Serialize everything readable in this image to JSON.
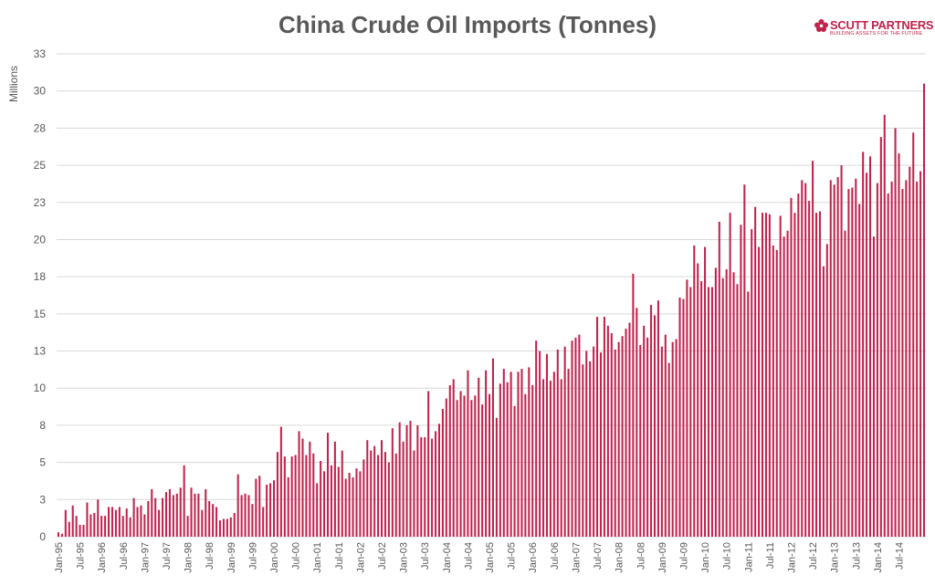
{
  "chart_data": {
    "type": "bar",
    "title": "China Crude Oil Imports (Tonnes)",
    "xlabel": "",
    "ylabel": "Millions",
    "ylim": [
      0,
      32.5
    ],
    "yticks": [
      0,
      2.5,
      5,
      7.5,
      10,
      12.5,
      15,
      17.5,
      20,
      22.5,
      25,
      27.5,
      30,
      32.5
    ],
    "ytick_labels": [
      "0",
      "3",
      "5",
      "8",
      "10",
      "13",
      "15",
      "18",
      "20",
      "23",
      "25",
      "28",
      "30",
      "33"
    ],
    "grid": true,
    "start": "1995-01",
    "tick_labels": [
      "Jan-95",
      "Jul-95",
      "Jan-96",
      "Jul-96",
      "Jan-97",
      "Jul-97",
      "Jan-98",
      "Jul-98",
      "Jan-99",
      "Jul-99",
      "Jan-00",
      "Jul-00",
      "Jan-01",
      "Jul-01",
      "Jan-02",
      "Jul-02",
      "Jan-03",
      "Jul-03",
      "Jan-04",
      "Jul-04",
      "Jan-05",
      "Jul-05",
      "Jan-06",
      "Jul-06",
      "Jan-07",
      "Jul-07",
      "Jan-08",
      "Jul-08",
      "Jan-09",
      "Jul-09",
      "Jan-10",
      "Jul-10",
      "Jan-11",
      "Jul-11",
      "Jan-12",
      "Jul-12",
      "Jan-13",
      "Jul-13",
      "Jan-14",
      "Jul-14"
    ],
    "series": [
      {
        "name": "Crude Oil Imports",
        "values": [
          0.3,
          0.2,
          1.8,
          1.0,
          2.1,
          1.4,
          0.8,
          0.8,
          2.3,
          1.5,
          1.6,
          2.5,
          1.4,
          1.4,
          2.0,
          2.0,
          1.8,
          2.0,
          1.4,
          1.9,
          1.3,
          2.6,
          2.0,
          2.1,
          1.5,
          2.4,
          3.2,
          2.6,
          1.8,
          2.6,
          3.0,
          3.2,
          2.8,
          2.9,
          3.3,
          4.8,
          1.4,
          3.3,
          2.9,
          2.9,
          1.8,
          3.2,
          2.4,
          2.2,
          2.0,
          1.1,
          1.2,
          1.2,
          1.3,
          1.6,
          4.2,
          2.8,
          2.9,
          2.8,
          2.2,
          3.9,
          4.1,
          2.0,
          3.5,
          3.6,
          3.8,
          5.7,
          7.4,
          5.4,
          4.0,
          5.4,
          5.5,
          7.1,
          6.6,
          5.5,
          6.4,
          5.6,
          3.6,
          5.1,
          4.4,
          7.0,
          4.8,
          6.4,
          4.7,
          5.8,
          3.9,
          4.3,
          4.0,
          4.6,
          4.4,
          5.2,
          6.5,
          5.8,
          6.1,
          5.5,
          6.5,
          5.7,
          5.0,
          7.3,
          5.6,
          7.7,
          6.4,
          7.5,
          7.8,
          5.8,
          7.5,
          6.7,
          6.7,
          9.8,
          6.6,
          7.1,
          7.6,
          8.6,
          9.3,
          10.2,
          10.6,
          9.2,
          9.8,
          9.5,
          11.2,
          9.2,
          9.5,
          10.7,
          8.9,
          11.2,
          9.6,
          12.0,
          8.0,
          10.3,
          11.3,
          10.4,
          11.1,
          8.8,
          11.1,
          11.3,
          9.6,
          11.4,
          10.2,
          13.2,
          12.5,
          10.6,
          12.3,
          10.5,
          11.1,
          12.6,
          10.6,
          12.8,
          11.3,
          13.2,
          13.4,
          13.6,
          11.6,
          12.5,
          11.8,
          12.8,
          14.8,
          12.4,
          14.8,
          14.2,
          13.7,
          12.6,
          13.1,
          13.5,
          14.0,
          14.4,
          17.7,
          15.4,
          12.9,
          14.2,
          13.4,
          15.6,
          14.9,
          15.9,
          12.8,
          13.6,
          11.7,
          13.1,
          13.3,
          16.1,
          16.0,
          17.3,
          16.8,
          19.6,
          18.4,
          17.2,
          19.5,
          16.8,
          16.8,
          18.1,
          21.2,
          17.4,
          18.0,
          21.8,
          17.8,
          17.0,
          21.0,
          23.7,
          16.5,
          20.7,
          22.2,
          19.5,
          21.8,
          21.8,
          21.7,
          19.6,
          19.3,
          21.6,
          20.2,
          20.6,
          22.8,
          21.8,
          23.1,
          24.0,
          23.8,
          22.6,
          25.3,
          21.8,
          21.9,
          18.2,
          19.7,
          24.0,
          23.7,
          24.2,
          25.0,
          20.6,
          23.4,
          23.5,
          24.1,
          22.4,
          25.9,
          24.5,
          25.6,
          20.2,
          23.8,
          26.9,
          28.4,
          23.1,
          23.9,
          27.5,
          25.8,
          23.4,
          24.0,
          24.9,
          27.2,
          23.9,
          24.6,
          30.5
        ]
      }
    ]
  }
}
